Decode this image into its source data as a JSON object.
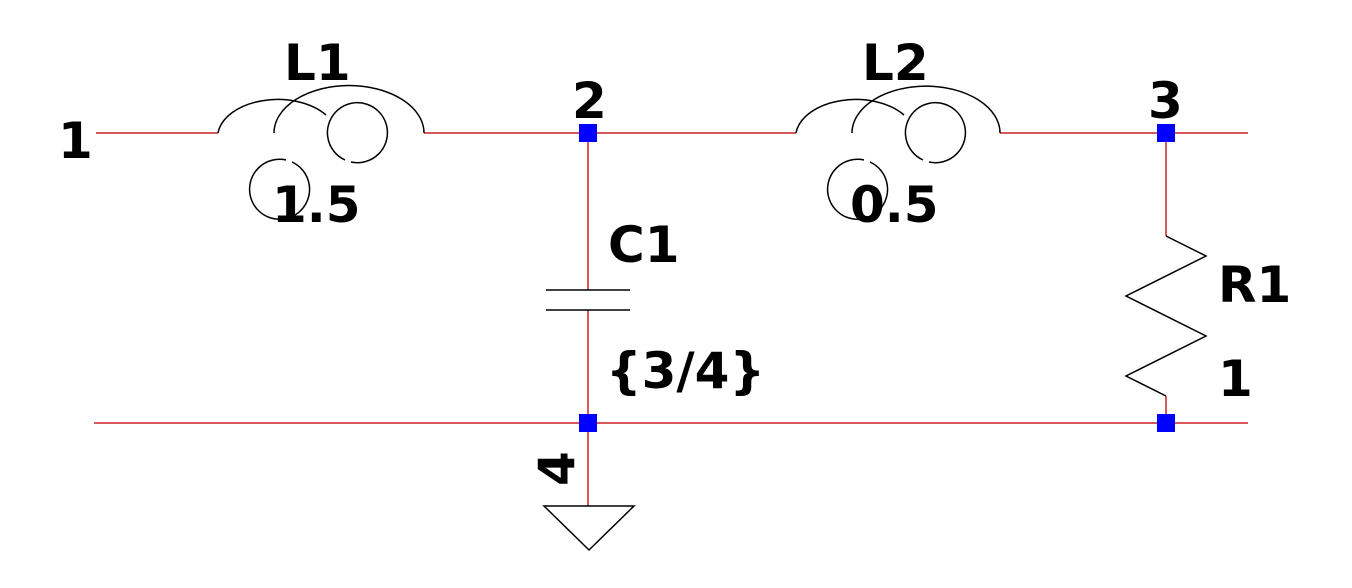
{
  "colors": {
    "wire": "#cc2222",
    "component": "#000000",
    "junction": "#0000ff",
    "background": "#ffffff"
  },
  "nodes": {
    "n1": "1",
    "n2": "2",
    "n3": "3",
    "n4": "4"
  },
  "components": {
    "L1": {
      "name": "L1",
      "value": "1.5"
    },
    "L2": {
      "name": "L2",
      "value": "0.5"
    },
    "C1": {
      "name": "C1",
      "value": "{3/4}"
    },
    "R1": {
      "name": "R1",
      "value": "1"
    }
  }
}
